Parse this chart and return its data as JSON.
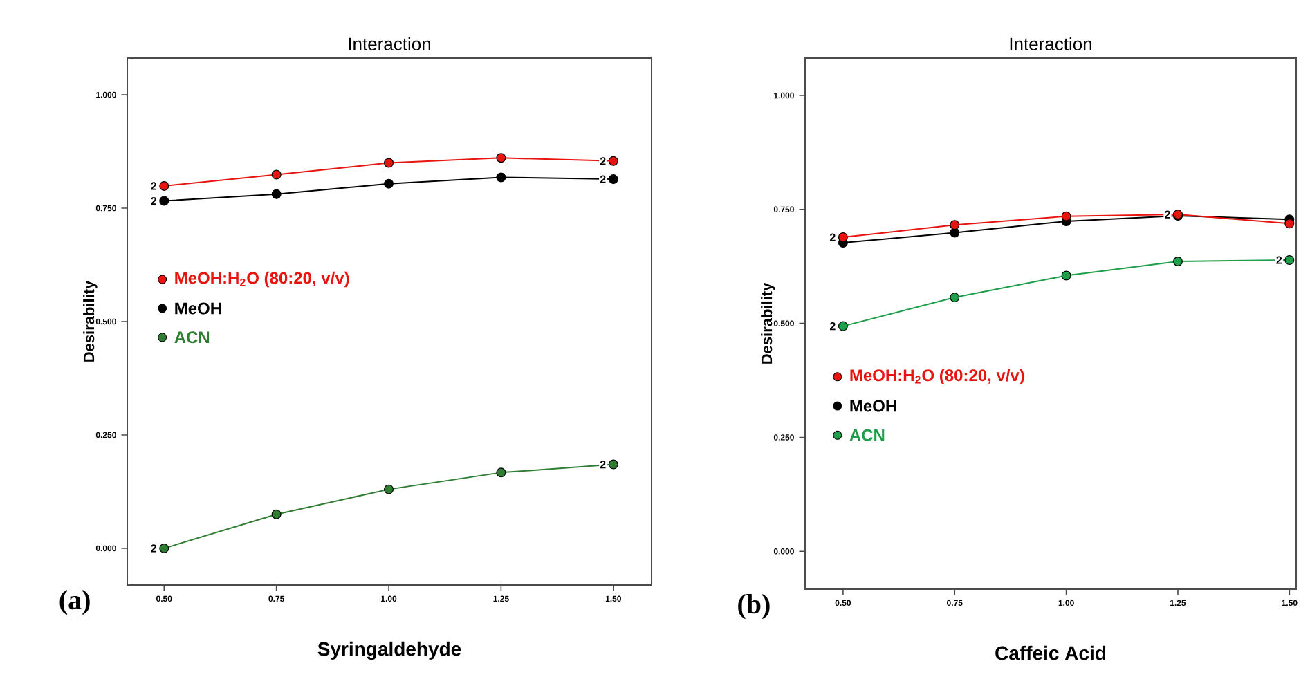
{
  "chart_data": [
    {
      "type": "line",
      "title": "Interaction",
      "xlabel": "Syringaldehyde",
      "ylabel": "Desirability",
      "x": [
        0.5,
        0.75,
        1.0,
        1.25,
        1.5
      ],
      "xlim": [
        0.418,
        1.585
      ],
      "ylim": [
        -0.081,
        1.081
      ],
      "xticks": [
        {
          "value": 0.5,
          "label": "0.50"
        },
        {
          "value": 0.75,
          "label": "0.75"
        },
        {
          "value": 1.0,
          "label": "1.00"
        },
        {
          "value": 1.25,
          "label": "1.25"
        },
        {
          "value": 1.5,
          "label": "1.50"
        }
      ],
      "yticks": [
        {
          "value": 0,
          "label": "0.000"
        },
        {
          "value": 0.25,
          "label": "0.250"
        },
        {
          "value": 0.5,
          "label": "0.500"
        },
        {
          "value": 0.75,
          "label": "0.750"
        },
        {
          "value": 1.0,
          "label": "1.000"
        }
      ],
      "marker": "circle",
      "legend": "left",
      "series": [
        {
          "name": "MeOH:H$_{2}$O (80:20, v/v)",
          "color": "#e8140f",
          "values": [
            0.799,
            0.824,
            0.85,
            0.861,
            0.854
          ]
        },
        {
          "name": "MeOH",
          "color": "#000000",
          "values": [
            0.766,
            0.781,
            0.804,
            0.818,
            0.814
          ]
        },
        {
          "name": "ACN",
          "color": "#2e7d32",
          "values": [
            0.0,
            0.075,
            0.13,
            0.167,
            0.185
          ]
        }
      ],
      "annotations": [
        "(a)",
        {
          "text": "2",
          "x": 0.5,
          "y": 0.799
        },
        {
          "text": "2",
          "x": 0.5,
          "y": 0.766
        },
        {
          "text": "2",
          "x": 1.5,
          "y": 0.854
        },
        {
          "text": "2",
          "x": 1.5,
          "y": 0.814
        },
        {
          "text": "2",
          "x": 0.5,
          "y": 0.0
        },
        {
          "text": "2",
          "x": 1.5,
          "y": 0.185
        }
      ]
    },
    {
      "type": "line",
      "title": "Interaction",
      "xlabel": "Caffeic Acid",
      "ylabel": "Desirability",
      "x": [
        0.5,
        0.75,
        1.0,
        1.25,
        1.5
      ],
      "xlim": [
        0.415,
        1.515
      ],
      "ylim": [
        -0.083,
        1.082
      ],
      "xticks": [
        {
          "value": 0.5,
          "label": "0.50"
        },
        {
          "value": 0.75,
          "label": "0.75"
        },
        {
          "value": 1.0,
          "label": "1.00"
        },
        {
          "value": 1.25,
          "label": "1.25"
        },
        {
          "value": 1.5,
          "label": "1.50"
        }
      ],
      "yticks": [
        {
          "value": 0,
          "label": "0.000"
        },
        {
          "value": 0.25,
          "label": "0.250"
        },
        {
          "value": 0.5,
          "label": "0.500"
        },
        {
          "value": 0.75,
          "label": "0.750"
        },
        {
          "value": 1.0,
          "label": "1.000"
        }
      ],
      "marker": "circle",
      "legend": "bottom left",
      "series": [
        {
          "name": "MeOH:H$_{2}$O (80:20, v/v)",
          "color": "#e8140f",
          "values": [
            0.689,
            0.716,
            0.735,
            0.739,
            0.719
          ]
        },
        {
          "name": "MeOH",
          "color": "#000000",
          "values": [
            0.677,
            0.699,
            0.724,
            0.736,
            0.728
          ]
        },
        {
          "name": "ACN",
          "color": "#1e9e4a",
          "values": [
            0.494,
            0.557,
            0.605,
            0.636,
            0.639
          ]
        }
      ],
      "annotations": [
        "(b)",
        {
          "text": "2",
          "x": 0.5,
          "y": 0.689
        },
        {
          "text": "2",
          "x": 1.25,
          "y": 0.739
        },
        {
          "text": "2",
          "x": 0.5,
          "y": 0.494
        },
        {
          "text": "2",
          "x": 1.5,
          "y": 0.639
        }
      ]
    }
  ]
}
